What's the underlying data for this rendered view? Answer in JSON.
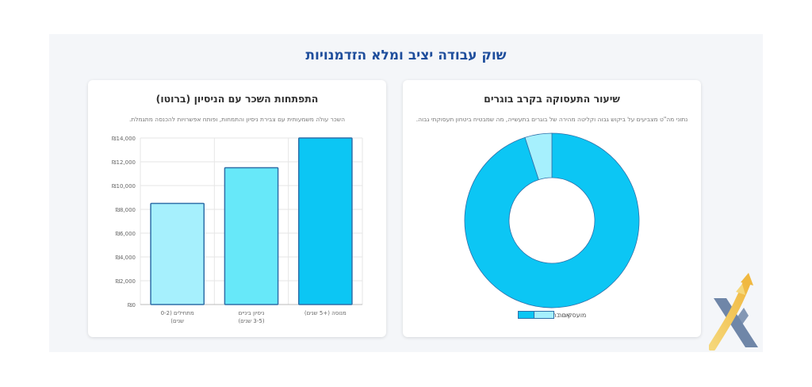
{
  "page": {
    "title": "שוק עבודה יציב ומלא הזדמנויות"
  },
  "salary_card": {
    "title": "התפתחות השכר עם הניסיון (ברוטו)",
    "subtitle": "השכר עולה משמעותית עם צבירת ניסיון והתמחות, ופותח אפשרויות להכנסה מתגמלת."
  },
  "employment_card": {
    "title": "שיעור התעסוקה בקרב בוגרים",
    "subtitle": "נתוני מה\"ט מצביעים על ביקוש גבוה וקליטה מהירה של בוגרים בתעשייה, מה שמבטיח ביטחון תעסוקתי גבוה."
  },
  "colors": {
    "accent": "#1f4e9c",
    "bar_light": "#a6f0fd",
    "bar_mid": "#67e8f9",
    "bar_dark": "#0cc6f4",
    "bar_border": "#2f6fa8",
    "pie_main": "#0cc6f4",
    "pie_other": "#a6f0fd"
  },
  "chart_data": [
    {
      "type": "bar",
      "title": "התפתחות השכר עם הניסיון (ברוטו)",
      "categories": [
        [
          "מתחילים (0-2",
          "שנים)"
        ],
        [
          "ניסיון ביניים",
          "(3-5 שנים)"
        ],
        [
          "מנוסה (+5 שנים)"
        ]
      ],
      "values": [
        8500,
        11500,
        14000
      ],
      "ylim": [
        0,
        14000
      ],
      "yticks": [
        "₪0",
        "₪2,000",
        "₪4,000",
        "₪6,000",
        "₪8,000",
        "₪10,000",
        "₪12,000",
        "₪14,000"
      ],
      "grid": true
    },
    {
      "type": "pie",
      "title": "שיעור התעסוקה בקרב בוגרים",
      "labels": [
        "מועסקים בתחום",
        "אחר"
      ],
      "values": [
        95,
        5
      ],
      "donut": true,
      "legend": "bottom"
    }
  ]
}
